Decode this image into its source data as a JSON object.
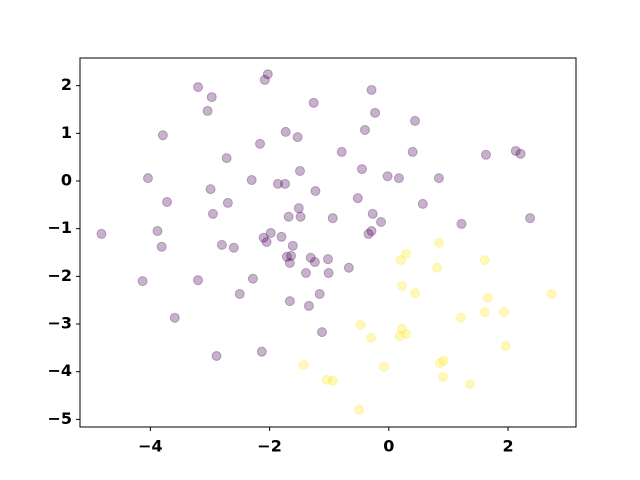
{
  "chart_data": {
    "type": "scatter",
    "xlim": [
      -5.18,
      3.14
    ],
    "ylim": [
      -5.16,
      2.58
    ],
    "xticks": [
      {
        "value": -4,
        "label": "−4"
      },
      {
        "value": -2,
        "label": "−2"
      },
      0,
      2
    ],
    "yticks": [
      {
        "value": -5,
        "label": "−5"
      },
      {
        "value": -4,
        "label": "−4"
      },
      {
        "value": -3,
        "label": "−3"
      },
      {
        "value": -2,
        "label": "−2"
      },
      {
        "value": -1,
        "label": "−1"
      },
      0,
      1,
      2
    ],
    "series": [
      {
        "color": "#440154",
        "x": [
          -4.82,
          -4.13,
          -4.04,
          -3.88,
          -3.81,
          -3.79,
          -3.72,
          -3.59,
          -3.2,
          -3.2,
          -3.04,
          -2.97,
          -2.99,
          -2.95,
          -2.89,
          -2.8,
          -2.72,
          -2.7,
          -2.6,
          -2.5,
          -2.3,
          -2.28,
          -2.16,
          -2.13,
          -2.1,
          -2.08,
          -2.03,
          -2.05,
          -1.98,
          -1.86,
          -1.8,
          -1.74,
          -1.73,
          -1.71,
          -1.68,
          -1.66,
          -1.64,
          -1.66,
          -1.61,
          -1.53,
          -1.49,
          -1.51,
          -1.48,
          -1.39,
          -1.34,
          -1.31,
          -1.26,
          -1.24,
          -1.23,
          -1.16,
          -1.12,
          -1.02,
          -1.01,
          -0.94,
          -0.79,
          -0.67,
          -0.52,
          -0.45,
          -0.4,
          -0.34,
          -0.29,
          -0.29,
          -0.27,
          -0.23,
          -0.13,
          -0.02,
          0.17,
          0.4,
          0.44,
          0.57,
          0.84,
          1.22,
          1.63,
          2.13,
          2.21,
          2.37
        ],
        "values": [
          -1.11,
          -2.1,
          0.06,
          -1.05,
          -1.38,
          0.96,
          -0.44,
          -2.87,
          1.97,
          -2.08,
          1.47,
          1.76,
          -0.17,
          -0.69,
          -3.67,
          -1.34,
          0.48,
          -0.46,
          -1.4,
          -2.37,
          0.02,
          -2.05,
          0.78,
          -3.58,
          -1.19,
          2.12,
          2.24,
          -1.28,
          -1.09,
          -0.06,
          -1.17,
          -0.06,
          1.03,
          -1.59,
          -0.75,
          -1.72,
          -1.57,
          -2.52,
          -1.36,
          0.92,
          0.21,
          -0.57,
          -0.75,
          -1.93,
          -2.62,
          -1.61,
          1.64,
          -1.7,
          -0.21,
          -2.37,
          -3.17,
          -1.64,
          -1.93,
          -0.78,
          0.61,
          -1.82,
          -0.36,
          0.25,
          1.07,
          -1.11,
          1.91,
          -1.05,
          -0.69,
          1.43,
          -0.86,
          0.1,
          0.06,
          0.61,
          1.26,
          -0.48,
          0.06,
          -0.9,
          0.55,
          0.63,
          0.57,
          -0.78
        ]
      },
      {
        "color": "#fde725",
        "x": [
          -1.43,
          -1.04,
          -0.94,
          -0.5,
          -0.47,
          -0.3,
          -0.08,
          0.18,
          0.2,
          0.22,
          0.22,
          0.29,
          0.29,
          0.44,
          0.81,
          0.84,
          0.86,
          0.92,
          0.91,
          1.21,
          1.36,
          1.61,
          1.61,
          1.66,
          1.93,
          1.96,
          2.73
        ],
        "values": [
          -3.86,
          -4.17,
          -4.19,
          -4.8,
          -3.02,
          -3.29,
          -3.9,
          -3.25,
          -1.66,
          -2.2,
          -3.1,
          -3.21,
          -1.53,
          -2.35,
          -1.82,
          -1.3,
          -3.82,
          -3.77,
          -4.11,
          -2.87,
          -4.26,
          -1.66,
          -2.75,
          -2.45,
          -2.75,
          -3.46,
          -2.37
        ]
      }
    ],
    "alpha": 0.3,
    "grid": false
  }
}
